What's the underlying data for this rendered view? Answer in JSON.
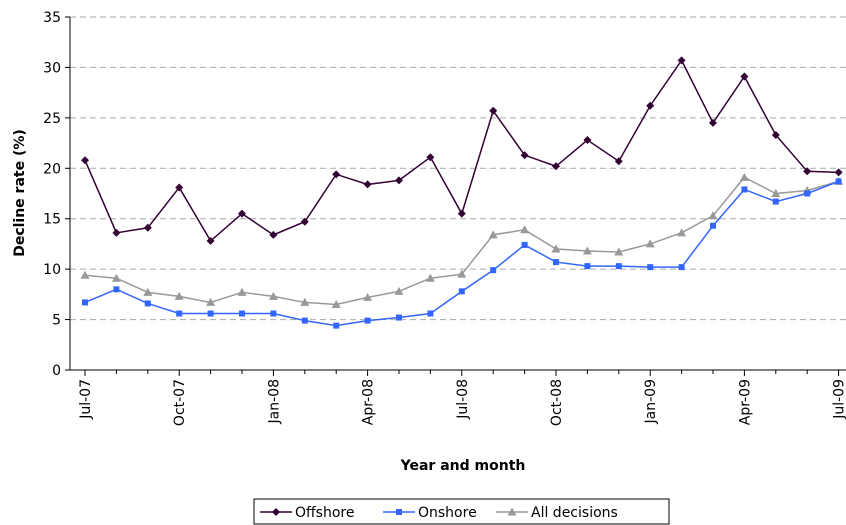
{
  "chart_data": {
    "type": "line",
    "title": "",
    "xlabel": "Year and month",
    "ylabel": "Decline rate (%)",
    "ylim": [
      0,
      35
    ],
    "yticks": [
      "0",
      "5",
      "10",
      "15",
      "20",
      "25",
      "30",
      "35"
    ],
    "grid": "horizontal dashed",
    "legend_position": "bottom",
    "x": [
      "Jul-07",
      "Aug-07",
      "Sep-07",
      "Oct-07",
      "Nov-07",
      "Dec-07",
      "Jan-08",
      "Feb-08",
      "Mar-08",
      "Apr-08",
      "May-08",
      "Jun-08",
      "Jul-08",
      "Aug-08",
      "Sep-08",
      "Oct-08",
      "Nov-08",
      "Dec-08",
      "Jan-09",
      "Feb-09",
      "Mar-09",
      "Apr-09",
      "May-09",
      "Jun-09",
      "Jul-09"
    ],
    "xtick_labels": [
      "Jul-07",
      "Oct-07",
      "Jan-08",
      "Apr-08",
      "Jul-08",
      "Oct-08",
      "Jan-09",
      "Apr-09",
      "Jul-09"
    ],
    "series": [
      {
        "name": "Offshore",
        "color": "#330033",
        "marker": "diamond",
        "values": [
          20.8,
          13.6,
          14.1,
          18.1,
          12.8,
          15.5,
          13.4,
          14.7,
          19.4,
          18.4,
          18.8,
          21.1,
          15.5,
          25.7,
          21.3,
          20.2,
          22.8,
          20.7,
          26.2,
          30.7,
          24.5,
          29.1,
          23.3,
          19.7,
          19.6
        ]
      },
      {
        "name": "Onshore",
        "color": "#3366ff",
        "marker": "square",
        "values": [
          6.7,
          8.0,
          6.6,
          5.6,
          5.6,
          5.6,
          5.6,
          4.9,
          4.4,
          4.9,
          5.2,
          5.6,
          7.8,
          9.9,
          12.4,
          10.7,
          10.3,
          10.3,
          10.2,
          10.2,
          14.3,
          17.9,
          16.7,
          17.5,
          18.7
        ]
      },
      {
        "name": "All decisions",
        "color": "#999999",
        "marker": "triangle",
        "values": [
          9.4,
          9.1,
          7.7,
          7.3,
          6.7,
          7.7,
          7.3,
          6.7,
          6.5,
          7.2,
          7.8,
          9.1,
          9.5,
          13.4,
          13.9,
          12.0,
          11.8,
          11.7,
          12.5,
          13.6,
          15.3,
          19.1,
          17.5,
          17.8,
          18.7
        ]
      }
    ]
  }
}
